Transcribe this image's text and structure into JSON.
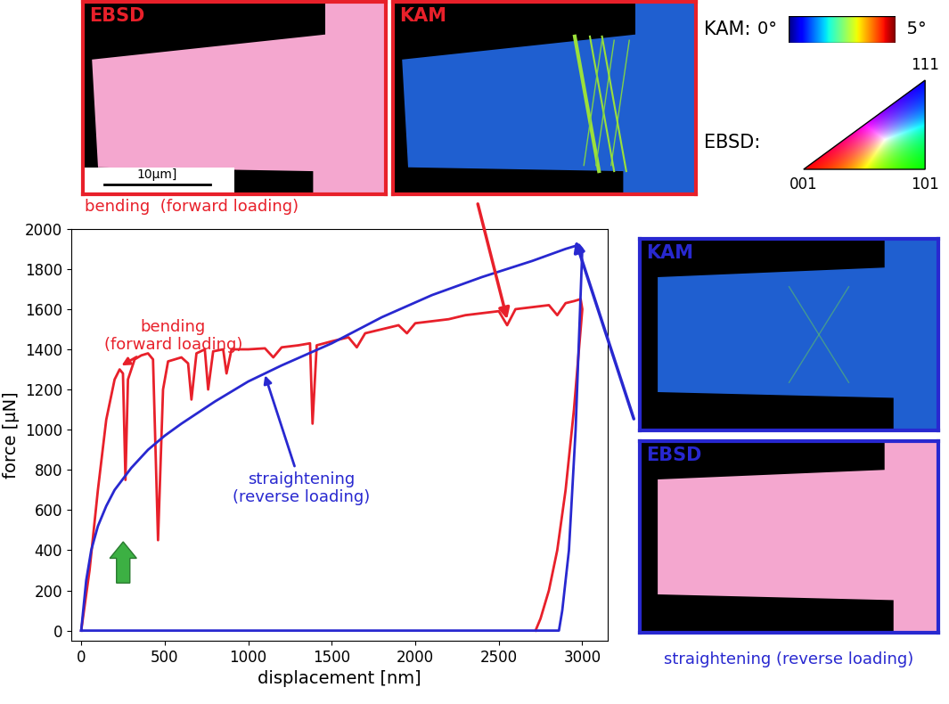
{
  "chart_data": {
    "type": "line",
    "xlabel": "displacement [nm]",
    "ylabel": "force [μN]",
    "xlim": [
      -60,
      3150
    ],
    "ylim": [
      -50,
      2000
    ],
    "xticks": [
      0,
      500,
      1000,
      1500,
      2000,
      2500,
      3000
    ],
    "yticks": [
      0,
      200,
      400,
      600,
      800,
      1000,
      1200,
      1400,
      1600,
      1800,
      2000
    ],
    "grid": false,
    "series": [
      {
        "color": "#e8202a",
        "x": [
          0,
          50,
          100,
          150,
          200,
          230,
          250,
          265,
          280,
          320,
          360,
          400,
          430,
          460,
          490,
          520,
          600,
          640,
          660,
          690,
          740,
          760,
          790,
          850,
          870,
          900,
          1000,
          1100,
          1150,
          1200,
          1300,
          1370,
          1385,
          1410,
          1500,
          1600,
          1650,
          1700,
          1800,
          1900,
          1950,
          2000,
          2100,
          2200,
          2300,
          2400,
          2500,
          2550,
          2600,
          2700,
          2800,
          2850,
          2900,
          2950,
          2990,
          3000,
          2950,
          2900,
          2850,
          2800,
          2750,
          2720
        ],
        "values": [
          0,
          300,
          700,
          1050,
          1250,
          1300,
          1280,
          750,
          1250,
          1350,
          1370,
          1380,
          1350,
          450,
          1200,
          1340,
          1360,
          1330,
          1150,
          1380,
          1400,
          1200,
          1390,
          1400,
          1280,
          1400,
          1400,
          1405,
          1360,
          1410,
          1420,
          1430,
          1030,
          1420,
          1440,
          1460,
          1410,
          1480,
          1500,
          1520,
          1480,
          1530,
          1540,
          1550,
          1570,
          1580,
          1590,
          1520,
          1600,
          1610,
          1620,
          1570,
          1630,
          1640,
          1650,
          1600,
          1100,
          700,
          400,
          200,
          60,
          0
        ]
      },
      {
        "color": "#2828d0",
        "x": [
          0,
          30,
          60,
          100,
          150,
          200,
          300,
          400,
          500,
          600,
          800,
          1000,
          1200,
          1500,
          1800,
          2100,
          2400,
          2700,
          2900,
          2980,
          3000,
          2960,
          2920,
          2880,
          2860,
          0
        ],
        "values": [
          0,
          250,
          400,
          520,
          620,
          700,
          810,
          900,
          970,
          1030,
          1140,
          1240,
          1320,
          1430,
          1560,
          1670,
          1760,
          1840,
          1900,
          1920,
          1900,
          1000,
          400,
          100,
          0,
          0
        ]
      }
    ],
    "annotations": [
      {
        "text": "bending\n(forward loading)",
        "color": "#e8202a"
      },
      {
        "text": "straightening\n(reverse loading)",
        "color": "#2828d0"
      }
    ]
  },
  "micrographs": {
    "forward": {
      "caption": "bending  (forward loading)",
      "color": "#e8202a",
      "maps": [
        "EBSD",
        "KAM"
      ],
      "scale_bar": "10μm]"
    },
    "reverse": {
      "caption": "straightening (reverse loading)",
      "color": "#2828d0",
      "maps": [
        "KAM",
        "EBSD"
      ]
    }
  },
  "kam_legend": {
    "title": "KAM:",
    "range": [
      0,
      5
    ],
    "ticks": [
      {
        "value": 0,
        "label": "0°"
      },
      {
        "value": 5,
        "label": "5°"
      }
    ]
  },
  "ebsd_legend": {
    "title": "EBSD:",
    "corners": [
      "001",
      "101",
      "111"
    ]
  }
}
